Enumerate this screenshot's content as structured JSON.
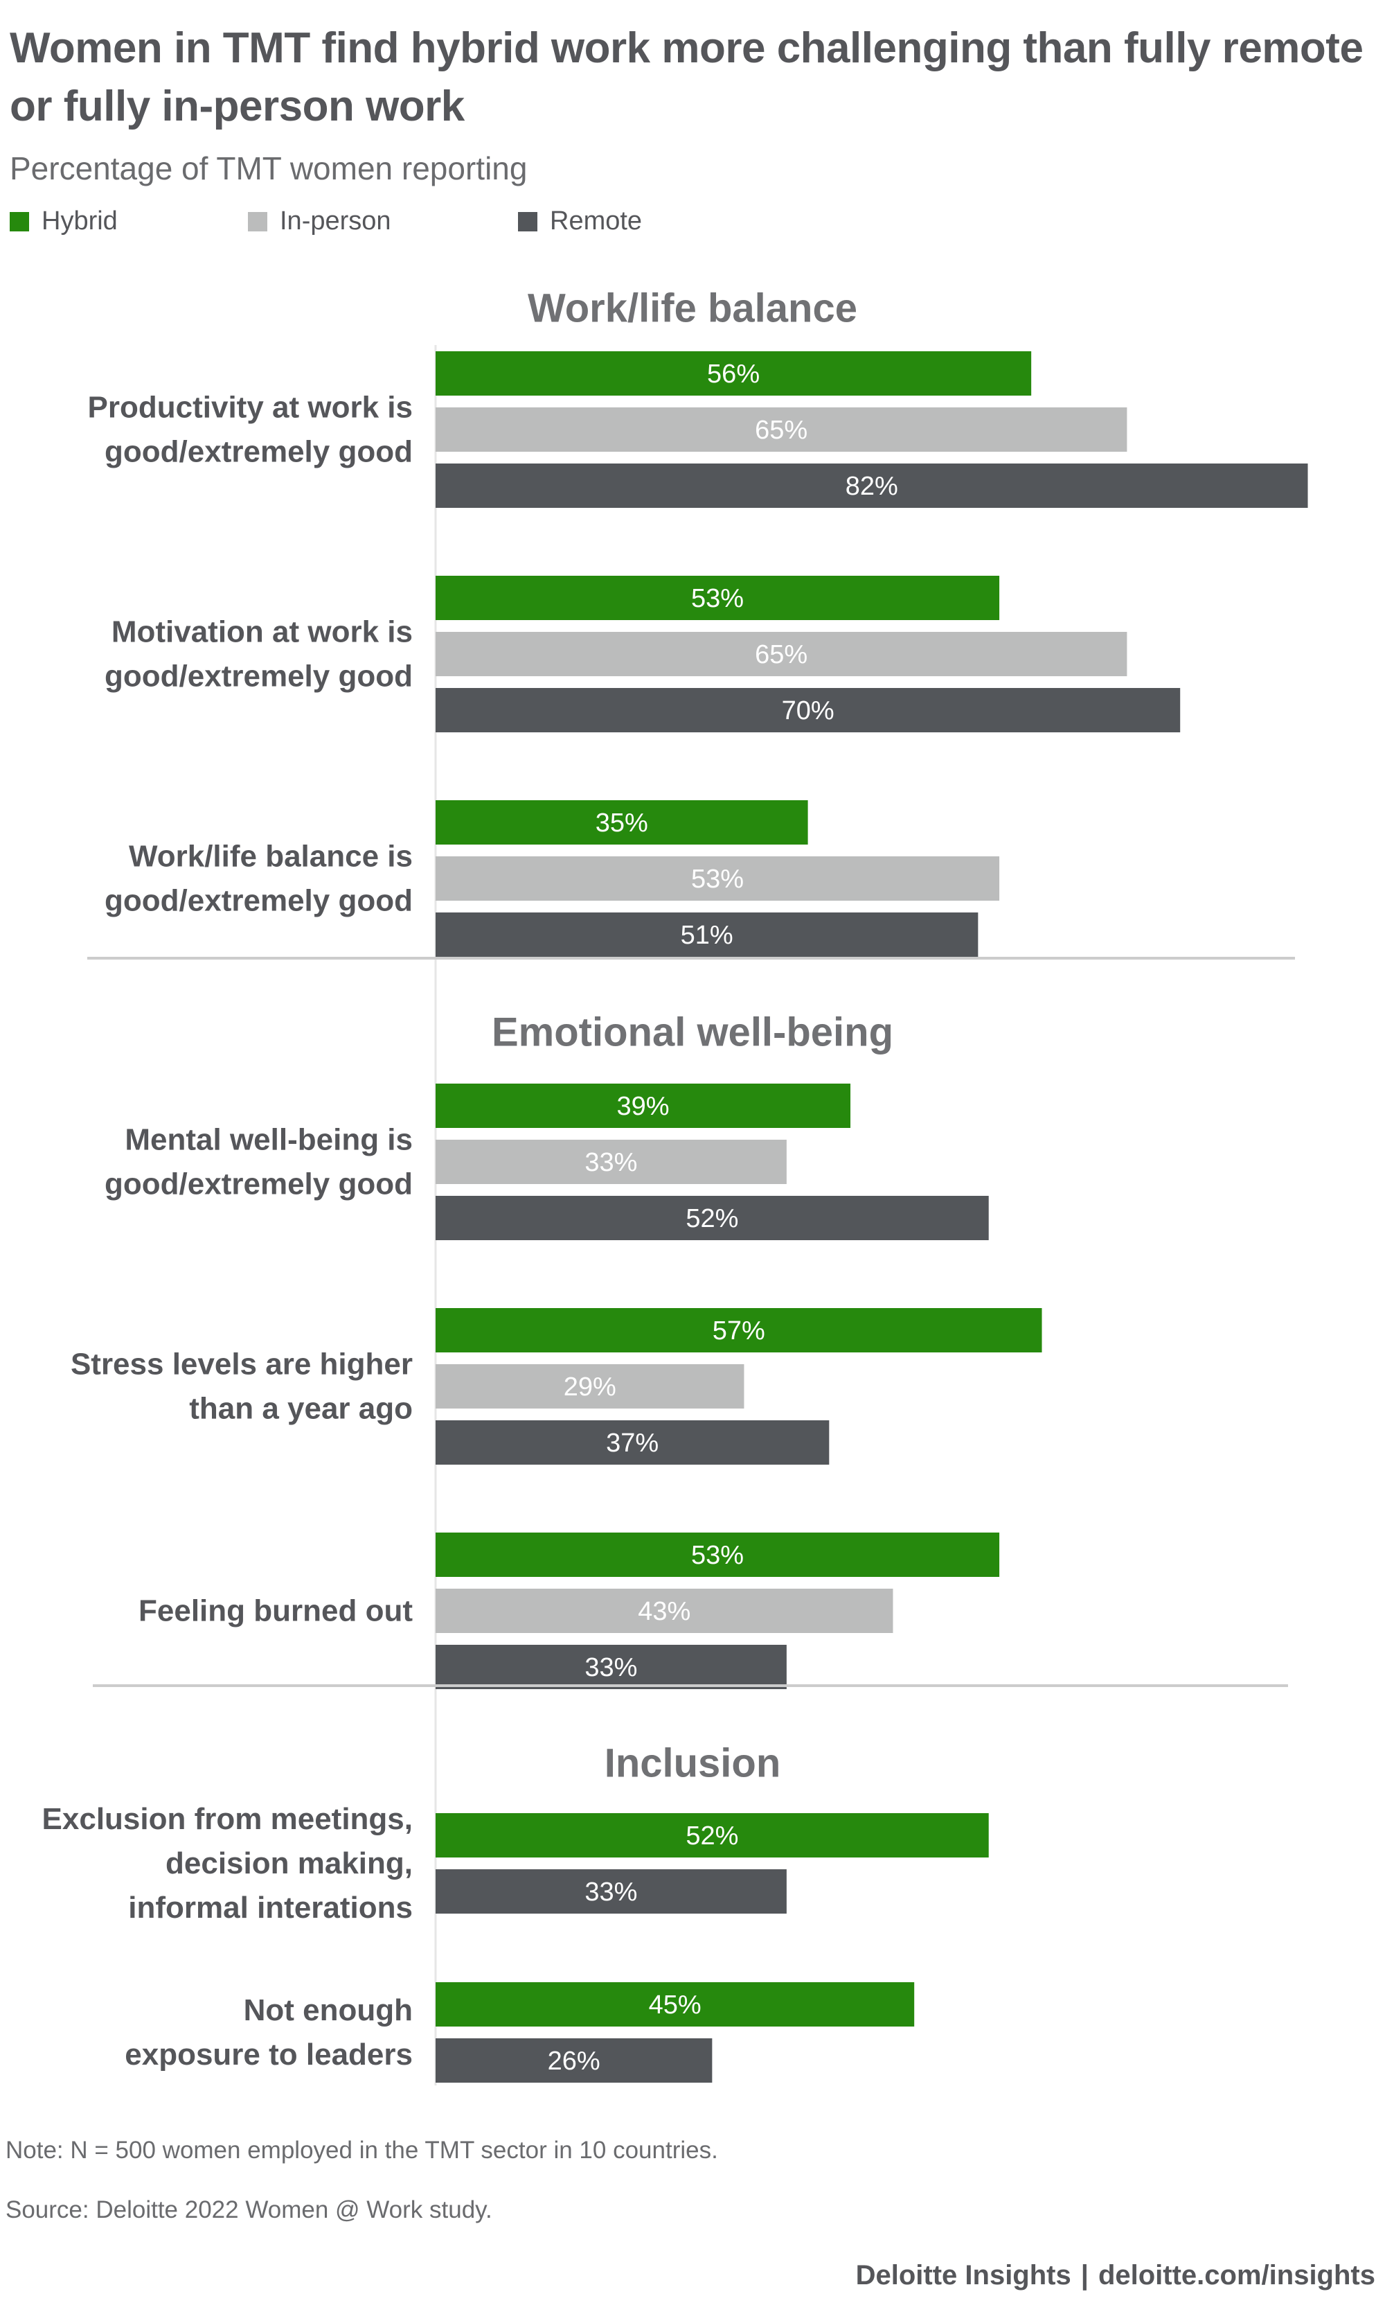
{
  "title": "Women in TMT find hybrid work more challenging than fully remote or fully in-person work",
  "subtitle": "Percentage of TMT women reporting",
  "legend": [
    {
      "label": "Hybrid",
      "color": "#26890d"
    },
    {
      "label": "In-person",
      "color": "#bbbcbc"
    },
    {
      "label": "Remote",
      "color": "#53565a"
    }
  ],
  "chart_data": {
    "type": "bar",
    "orientation": "horizontal",
    "units": "%",
    "xlim": [
      0,
      82
    ],
    "series_colors": {
      "Hybrid": "#26890d",
      "In-person": "#bbbcbc",
      "Remote": "#53565a"
    },
    "sections": [
      {
        "title": "Work/life balance",
        "groups": [
          {
            "label": [
              "Productivity at work is",
              "good/extremely good"
            ],
            "bars": [
              {
                "series": "Hybrid",
                "value": 56
              },
              {
                "series": "In-person",
                "value": 65
              },
              {
                "series": "Remote",
                "value": 82
              }
            ]
          },
          {
            "label": [
              "Motivation at work is",
              "good/extremely good"
            ],
            "bars": [
              {
                "series": "Hybrid",
                "value": 53
              },
              {
                "series": "In-person",
                "value": 65
              },
              {
                "series": "Remote",
                "value": 70
              }
            ]
          },
          {
            "label": [
              "Work/life balance is",
              "good/extremely good"
            ],
            "bars": [
              {
                "series": "Hybrid",
                "value": 35
              },
              {
                "series": "In-person",
                "value": 53
              },
              {
                "series": "Remote",
                "value": 51
              }
            ]
          }
        ]
      },
      {
        "title": "Emotional well-being",
        "groups": [
          {
            "label": [
              "Mental well-being is",
              "good/extremely good"
            ],
            "bars": [
              {
                "series": "Hybrid",
                "value": 39
              },
              {
                "series": "In-person",
                "value": 33
              },
              {
                "series": "Remote",
                "value": 52
              }
            ]
          },
          {
            "label": [
              "Stress levels are higher",
              "than a year ago"
            ],
            "bars": [
              {
                "series": "Hybrid",
                "value": 57
              },
              {
                "series": "In-person",
                "value": 29
              },
              {
                "series": "Remote",
                "value": 37
              }
            ]
          },
          {
            "label": [
              "Feeling burned out"
            ],
            "bars": [
              {
                "series": "Hybrid",
                "value": 53
              },
              {
                "series": "In-person",
                "value": 43
              },
              {
                "series": "Remote",
                "value": 33
              }
            ]
          }
        ]
      },
      {
        "title": "Inclusion",
        "groups": [
          {
            "label": [
              "Exclusion from meetings,",
              "decision making,",
              "informal interations"
            ],
            "bars": [
              {
                "series": "Hybrid",
                "value": 52
              },
              {
                "series": "Remote",
                "value": 33
              }
            ]
          },
          {
            "label": [
              "Not enough",
              "exposure to leaders"
            ],
            "bars": [
              {
                "series": "Hybrid",
                "value": 45
              },
              {
                "series": "Remote",
                "value": 26
              }
            ]
          }
        ]
      }
    ]
  },
  "note": "Note: N = 500 women employed in the TMT sector in 10 countries.",
  "source": "Source: Deloitte 2022 Women @ Work study.",
  "brand": {
    "name": "Deloitte Insights",
    "separator": "|",
    "url": "deloitte.com/insights"
  }
}
